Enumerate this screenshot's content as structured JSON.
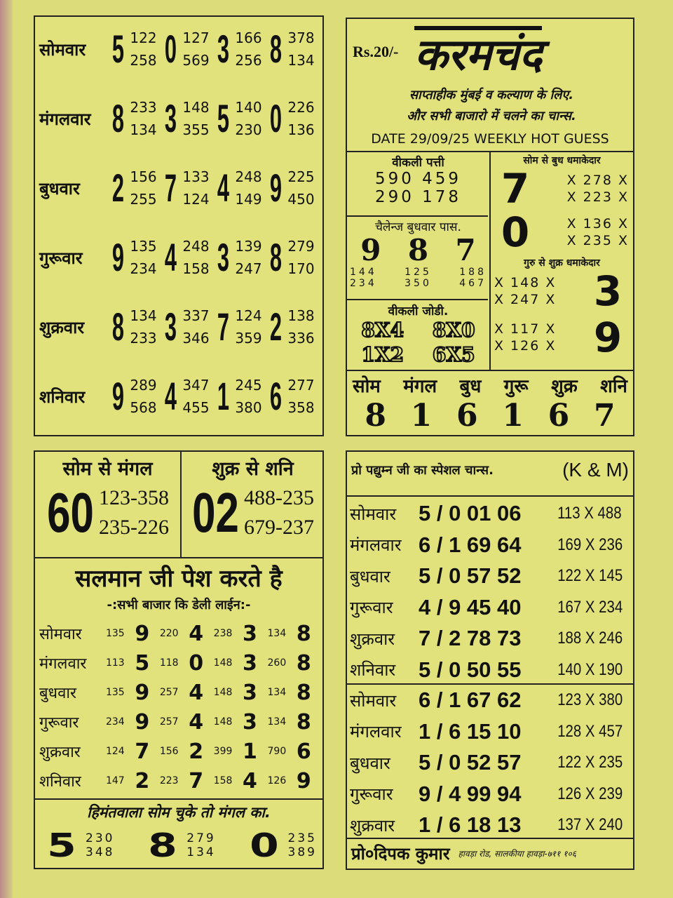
{
  "colors": {
    "paper": "#e2e27c",
    "ink": "#111111"
  },
  "weekly_chart": [
    {
      "day": "सोमवार",
      "groups": [
        {
          "d": "5",
          "p": [
            "122",
            "258"
          ]
        },
        {
          "d": "0",
          "p": [
            "127",
            "569"
          ]
        },
        {
          "d": "3",
          "p": [
            "166",
            "256"
          ]
        },
        {
          "d": "8",
          "p": [
            "378",
            "134"
          ]
        }
      ]
    },
    {
      "day": "मंगलवार",
      "groups": [
        {
          "d": "8",
          "p": [
            "233",
            "134"
          ]
        },
        {
          "d": "3",
          "p": [
            "148",
            "355"
          ]
        },
        {
          "d": "5",
          "p": [
            "140",
            "230"
          ]
        },
        {
          "d": "0",
          "p": [
            "226",
            "136"
          ]
        }
      ]
    },
    {
      "day": "बुधवार",
      "groups": [
        {
          "d": "2",
          "p": [
            "156",
            "255"
          ]
        },
        {
          "d": "7",
          "p": [
            "133",
            "124"
          ]
        },
        {
          "d": "4",
          "p": [
            "248",
            "149"
          ]
        },
        {
          "d": "9",
          "p": [
            "225",
            "450"
          ]
        }
      ]
    },
    {
      "day": "गुरूवार",
      "groups": [
        {
          "d": "9",
          "p": [
            "135",
            "234"
          ]
        },
        {
          "d": "4",
          "p": [
            "248",
            "158"
          ]
        },
        {
          "d": "3",
          "p": [
            "139",
            "247"
          ]
        },
        {
          "d": "8",
          "p": [
            "279",
            "170"
          ]
        }
      ]
    },
    {
      "day": "शुक्रवार",
      "groups": [
        {
          "d": "8",
          "p": [
            "134",
            "233"
          ]
        },
        {
          "d": "3",
          "p": [
            "337",
            "346"
          ]
        },
        {
          "d": "7",
          "p": [
            "124",
            "359"
          ]
        },
        {
          "d": "2",
          "p": [
            "138",
            "336"
          ]
        }
      ]
    },
    {
      "day": "शनिवार",
      "groups": [
        {
          "d": "9",
          "p": [
            "289",
            "568"
          ]
        },
        {
          "d": "4",
          "p": [
            "347",
            "455"
          ]
        },
        {
          "d": "1",
          "p": [
            "245",
            "380"
          ]
        },
        {
          "d": "6",
          "p": [
            "277",
            "358"
          ]
        }
      ]
    }
  ],
  "header": {
    "price": "Rs.20/-",
    "title": "करमचंद",
    "line1": "साप्ताहीक मुंबई व कल्याण के लिए.",
    "line2": "और सभी बाजारो में चलने का चान्स.",
    "date_line": "DATE 29/09/25 WEEKLY HOT GUESS"
  },
  "weekly_patti": {
    "label": "वीकली पत्ती",
    "rows": [
      [
        "590",
        "459"
      ],
      [
        "290",
        "178"
      ]
    ]
  },
  "challenge": {
    "label": "चैलेन्ज बुधवार पास.",
    "digits": [
      "9",
      "8",
      "7"
    ],
    "rows": [
      [
        "144",
        "125",
        "188"
      ],
      [
        "234",
        "350",
        "467"
      ]
    ]
  },
  "weekly_jodi": {
    "label": "वीकली जोडी.",
    "pairs": [
      "8X4",
      "8X0",
      "1X2",
      "6X5"
    ]
  },
  "som_budh": {
    "label": "सोम से बुध धमाकेदार",
    "blocks": [
      {
        "d": "7",
        "p": [
          "278",
          "223"
        ]
      },
      {
        "d": "0",
        "p": [
          "136",
          "235"
        ]
      }
    ]
  },
  "guru_shukr": {
    "label": "गुरु से शुक्र धमाकेदार",
    "blocks": [
      {
        "d": "3",
        "p": [
          "148",
          "247"
        ]
      },
      {
        "d": "9",
        "p": [
          "117",
          "126"
        ]
      }
    ]
  },
  "x_mark": "X",
  "week_digits": {
    "days": [
      "सोम",
      "मंगल",
      "बुध",
      "गुरू",
      "शुक्र",
      "शनि"
    ],
    "digits": [
      "8",
      "1",
      "6",
      "1",
      "6",
      "7"
    ]
  },
  "som_mangal": {
    "label": "सोम से मंगल",
    "jodi": "60",
    "pannas": [
      "123-358",
      "235-226"
    ]
  },
  "shukr_shani": {
    "label": "शुक्र से शनि",
    "jodi": "02",
    "pannas": [
      "488-235",
      "679-237"
    ]
  },
  "salman": {
    "title": "सलमान जी पेश करते है",
    "subtitle": "-:सभी बाजार कि डेली लाईन:-",
    "rows": [
      {
        "day": "सोमवार",
        "cells": [
          [
            "135",
            "9"
          ],
          [
            "220",
            "4"
          ],
          [
            "238",
            "3"
          ],
          [
            "134",
            "8"
          ]
        ]
      },
      {
        "day": "मंगलवार",
        "cells": [
          [
            "113",
            "5"
          ],
          [
            "118",
            "0"
          ],
          [
            "148",
            "3"
          ],
          [
            "260",
            "8"
          ]
        ]
      },
      {
        "day": "बुधवार",
        "cells": [
          [
            "135",
            "9"
          ],
          [
            "257",
            "4"
          ],
          [
            "148",
            "3"
          ],
          [
            "134",
            "8"
          ]
        ]
      },
      {
        "day": "गुरूवार",
        "cells": [
          [
            "234",
            "9"
          ],
          [
            "257",
            "4"
          ],
          [
            "148",
            "3"
          ],
          [
            "134",
            "8"
          ]
        ]
      },
      {
        "day": "शुक्रवार",
        "cells": [
          [
            "124",
            "7"
          ],
          [
            "156",
            "2"
          ],
          [
            "399",
            "1"
          ],
          [
            "790",
            "6"
          ]
        ]
      },
      {
        "day": "शनिवार",
        "cells": [
          [
            "147",
            "2"
          ],
          [
            "223",
            "7"
          ],
          [
            "158",
            "4"
          ],
          [
            "126",
            "9"
          ]
        ]
      }
    ]
  },
  "himmat": {
    "label": "हिमंतवाला सोम चुके तो मंगल का.",
    "groups": [
      {
        "d": "5",
        "p": [
          "230",
          "348"
        ]
      },
      {
        "d": "8",
        "p": [
          "279",
          "134"
        ]
      },
      {
        "d": "0",
        "p": [
          "235",
          "389"
        ]
      }
    ]
  },
  "special": {
    "label": "प्रो पद्युम्न जी का स्पेशल चान्स.",
    "tag": "(K & M)",
    "week1": [
      {
        "day": "सोमवार",
        "code": "5 / 0 01 06",
        "pair": "113 X 488"
      },
      {
        "day": "मंगलवार",
        "code": "6 / 1 69 64",
        "pair": "169 X 236"
      },
      {
        "day": "बुधवार",
        "code": "5 / 0 57 52",
        "pair": "122 X 145"
      },
      {
        "day": "गुरूवार",
        "code": "4 / 9 45 40",
        "pair": "167 X 234"
      },
      {
        "day": "शुक्रवार",
        "code": "7 / 2 78 73",
        "pair": "188 X 246"
      },
      {
        "day": "शनिवार",
        "code": "5 / 0 50 55",
        "pair": "140 X 190"
      }
    ],
    "week2": [
      {
        "day": "सोमवार",
        "code": "6 / 1 67 62",
        "pair": "123 X 380"
      },
      {
        "day": "मंगलवार",
        "code": "1 / 6 15 10",
        "pair": "128 X 457"
      },
      {
        "day": "बुधवार",
        "code": "5 / 0 52 57",
        "pair": "122 X 235"
      },
      {
        "day": "गुरूवार",
        "code": "9 / 4 99 94",
        "pair": "126 X 239"
      },
      {
        "day": "शुक्रवार",
        "code": "1 / 6 18 13",
        "pair": "137 X 240"
      }
    ]
  },
  "footer": {
    "name": "प्रो०दिपक कुमार",
    "address": "हावड़ा रोड, सालकीया हावड़ा-७११ १०६"
  }
}
